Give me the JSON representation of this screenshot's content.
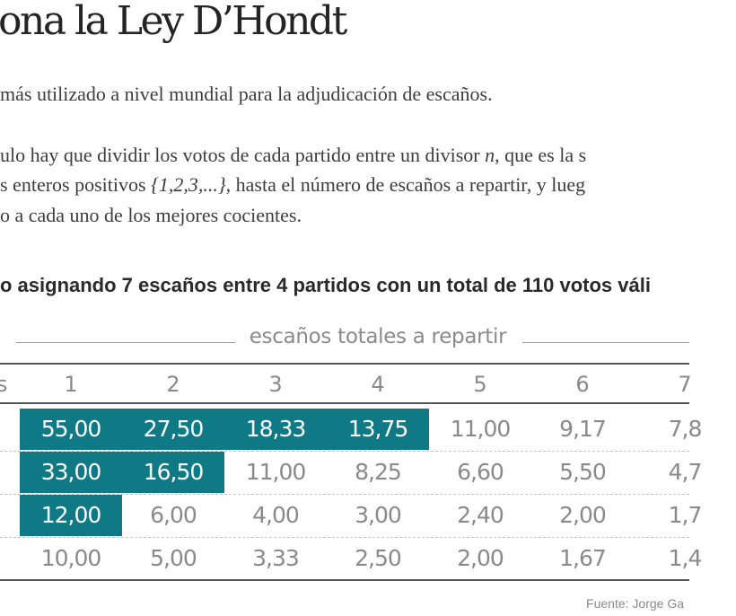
{
  "title": "ona la Ley D’Hondt",
  "intro": {
    "line1": "más utilizado a nivel mundial para la adjudicación de escaños.",
    "line2_a": "ulo hay que  dividir los votos de cada partido entre un divisor ",
    "line2_var": "n",
    "line2_b": ", que es la s",
    "line3_a": "s enteros positivos ",
    "line3_set": "{1,2,3,...}",
    "line3_b": ", hasta el número de escaños a repartir, y lueg",
    "line4": "o a cada uno de los mejores cocientes."
  },
  "subtitle": "o asignando 7 escaños entre 4 partidos con un total de 110 votos váli",
  "table": {
    "header_label": "escaños totales a repartir",
    "left_partial_header": "s",
    "columns": [
      "1",
      "2",
      "3",
      "4",
      "5",
      "6",
      "7"
    ],
    "rows": [
      {
        "cells": [
          "55,00",
          "27,50",
          "18,33",
          "13,75",
          "11,00",
          "9,17",
          "7,8"
        ],
        "seats": 4
      },
      {
        "cells": [
          "33,00",
          "16,50",
          "11,00",
          "8,25",
          "6,60",
          "5,50",
          "4,7"
        ],
        "seats": 2
      },
      {
        "cells": [
          "12,00",
          "6,00",
          "4,00",
          "3,00",
          "2,40",
          "2,00",
          "1,7"
        ],
        "seats": 1
      },
      {
        "cells": [
          "10,00",
          "5,00",
          "3,33",
          "2,50",
          "2,00",
          "1,67",
          "1,4"
        ],
        "seats": 0
      }
    ],
    "highlight_color": "#0f7a86"
  },
  "source": "Fuente:  Jorge Ga"
}
